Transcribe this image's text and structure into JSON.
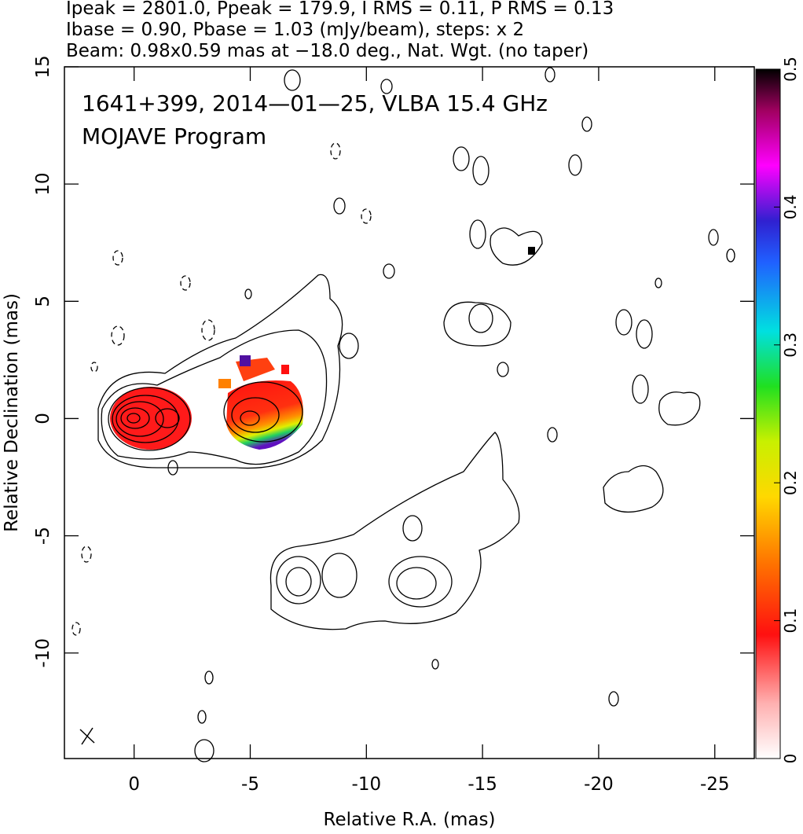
{
  "chart_data": {
    "type": "contour",
    "title_lines": [
      "Ipeak = 2801.0, Ppeak = 179.9, I RMS = 0.11, P RMS = 0.13",
      "Ibase = 0.90, Pbase = 1.03 (mJy/beam), steps: x 2",
      "Beam: 0.98x0.59 mas at −18.0 deg., Nat. Wgt. (no taper)"
    ],
    "annotations": [
      "1641+399, 2014—01—25, VLBA 15.4 GHz",
      "MOJAVE Program"
    ],
    "x_label": "Relative R.A. (mas)",
    "y_label": "Relative Declination (mas)",
    "xlim": [
      3,
      -26.7
    ],
    "ylim": [
      -14.5,
      15
    ],
    "xticks": [
      0,
      -5,
      -10,
      -15,
      -20,
      -25
    ],
    "yticks": [
      -10,
      -5,
      0,
      5,
      10,
      15
    ],
    "colorbar": {
      "lim": [
        0,
        0.5
      ],
      "ticks": [
        0,
        0.1,
        0.2,
        0.3,
        0.4,
        0.5
      ]
    }
  }
}
